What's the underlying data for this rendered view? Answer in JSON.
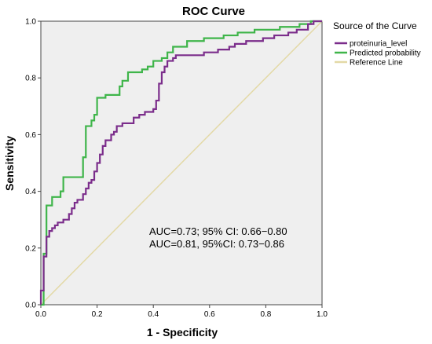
{
  "chart_data": {
    "type": "line",
    "title": "ROC Curve",
    "xlabel": "1 - Specificity",
    "ylabel": "Sensitivity",
    "xlim": [
      0,
      1
    ],
    "ylim": [
      0,
      1
    ],
    "x_ticks": [
      "0.0",
      "0.2",
      "0.4",
      "0.6",
      "0.8",
      "1.0"
    ],
    "y_ticks": [
      "0.0",
      "0.2",
      "0.4",
      "0.6",
      "0.8",
      "1.0"
    ],
    "grid": false,
    "legend": {
      "title": "Source of the Curve",
      "placement": "right"
    },
    "series": [
      {
        "name": "proteinuria_level",
        "color": "#7b2d8b",
        "points": [
          [
            0,
            0
          ],
          [
            0,
            0.05
          ],
          [
            0.01,
            0.05
          ],
          [
            0.01,
            0.17
          ],
          [
            0.02,
            0.17
          ],
          [
            0.02,
            0.24
          ],
          [
            0.03,
            0.24
          ],
          [
            0.03,
            0.26
          ],
          [
            0.04,
            0.26
          ],
          [
            0.04,
            0.27
          ],
          [
            0.05,
            0.27
          ],
          [
            0.05,
            0.28
          ],
          [
            0.06,
            0.28
          ],
          [
            0.06,
            0.29
          ],
          [
            0.07,
            0.29
          ],
          [
            0.08,
            0.29
          ],
          [
            0.08,
            0.3
          ],
          [
            0.09,
            0.3
          ],
          [
            0.1,
            0.3
          ],
          [
            0.1,
            0.32
          ],
          [
            0.11,
            0.32
          ],
          [
            0.11,
            0.34
          ],
          [
            0.12,
            0.34
          ],
          [
            0.12,
            0.36
          ],
          [
            0.13,
            0.36
          ],
          [
            0.13,
            0.37
          ],
          [
            0.15,
            0.37
          ],
          [
            0.15,
            0.39
          ],
          [
            0.16,
            0.39
          ],
          [
            0.16,
            0.41
          ],
          [
            0.17,
            0.41
          ],
          [
            0.17,
            0.43
          ],
          [
            0.18,
            0.43
          ],
          [
            0.18,
            0.44
          ],
          [
            0.19,
            0.44
          ],
          [
            0.19,
            0.47
          ],
          [
            0.2,
            0.47
          ],
          [
            0.2,
            0.5
          ],
          [
            0.21,
            0.5
          ],
          [
            0.21,
            0.53
          ],
          [
            0.22,
            0.53
          ],
          [
            0.22,
            0.56
          ],
          [
            0.23,
            0.56
          ],
          [
            0.23,
            0.58
          ],
          [
            0.25,
            0.58
          ],
          [
            0.25,
            0.6
          ],
          [
            0.26,
            0.6
          ],
          [
            0.26,
            0.61
          ],
          [
            0.27,
            0.61
          ],
          [
            0.27,
            0.63
          ],
          [
            0.29,
            0.63
          ],
          [
            0.29,
            0.64
          ],
          [
            0.33,
            0.64
          ],
          [
            0.33,
            0.66
          ],
          [
            0.35,
            0.66
          ],
          [
            0.35,
            0.67
          ],
          [
            0.37,
            0.67
          ],
          [
            0.37,
            0.68
          ],
          [
            0.4,
            0.68
          ],
          [
            0.4,
            0.69
          ],
          [
            0.41,
            0.69
          ],
          [
            0.41,
            0.72
          ],
          [
            0.42,
            0.72
          ],
          [
            0.42,
            0.78
          ],
          [
            0.43,
            0.78
          ],
          [
            0.43,
            0.82
          ],
          [
            0.44,
            0.82
          ],
          [
            0.44,
            0.84
          ],
          [
            0.45,
            0.84
          ],
          [
            0.45,
            0.86
          ],
          [
            0.47,
            0.86
          ],
          [
            0.47,
            0.87
          ],
          [
            0.48,
            0.87
          ],
          [
            0.48,
            0.88
          ],
          [
            0.58,
            0.88
          ],
          [
            0.58,
            0.89
          ],
          [
            0.63,
            0.89
          ],
          [
            0.63,
            0.9
          ],
          [
            0.67,
            0.9
          ],
          [
            0.67,
            0.91
          ],
          [
            0.69,
            0.91
          ],
          [
            0.69,
            0.92
          ],
          [
            0.73,
            0.92
          ],
          [
            0.73,
            0.93
          ],
          [
            0.79,
            0.93
          ],
          [
            0.79,
            0.94
          ],
          [
            0.83,
            0.94
          ],
          [
            0.83,
            0.95
          ],
          [
            0.88,
            0.95
          ],
          [
            0.88,
            0.96
          ],
          [
            0.91,
            0.96
          ],
          [
            0.91,
            0.97
          ],
          [
            0.95,
            0.97
          ],
          [
            0.95,
            0.99
          ],
          [
            0.97,
            0.99
          ],
          [
            0.97,
            1.0
          ],
          [
            1.0,
            1.0
          ]
        ]
      },
      {
        "name": "Predicted probability",
        "color": "#3fb54a",
        "points": [
          [
            0,
            0
          ],
          [
            0.01,
            0
          ],
          [
            0.01,
            0.18
          ],
          [
            0.02,
            0.18
          ],
          [
            0.02,
            0.35
          ],
          [
            0.04,
            0.35
          ],
          [
            0.04,
            0.38
          ],
          [
            0.07,
            0.38
          ],
          [
            0.07,
            0.4
          ],
          [
            0.08,
            0.4
          ],
          [
            0.08,
            0.45
          ],
          [
            0.15,
            0.45
          ],
          [
            0.15,
            0.52
          ],
          [
            0.16,
            0.52
          ],
          [
            0.16,
            0.63
          ],
          [
            0.18,
            0.63
          ],
          [
            0.18,
            0.65
          ],
          [
            0.19,
            0.65
          ],
          [
            0.19,
            0.67
          ],
          [
            0.2,
            0.67
          ],
          [
            0.2,
            0.73
          ],
          [
            0.23,
            0.73
          ],
          [
            0.23,
            0.74
          ],
          [
            0.28,
            0.74
          ],
          [
            0.28,
            0.77
          ],
          [
            0.29,
            0.77
          ],
          [
            0.29,
            0.79
          ],
          [
            0.31,
            0.79
          ],
          [
            0.31,
            0.82
          ],
          [
            0.36,
            0.82
          ],
          [
            0.36,
            0.83
          ],
          [
            0.38,
            0.83
          ],
          [
            0.38,
            0.84
          ],
          [
            0.4,
            0.84
          ],
          [
            0.4,
            0.86
          ],
          [
            0.43,
            0.86
          ],
          [
            0.43,
            0.87
          ],
          [
            0.45,
            0.87
          ],
          [
            0.45,
            0.89
          ],
          [
            0.47,
            0.89
          ],
          [
            0.47,
            0.91
          ],
          [
            0.52,
            0.91
          ],
          [
            0.52,
            0.93
          ],
          [
            0.58,
            0.93
          ],
          [
            0.58,
            0.94
          ],
          [
            0.65,
            0.94
          ],
          [
            0.65,
            0.95
          ],
          [
            0.7,
            0.95
          ],
          [
            0.7,
            0.96
          ],
          [
            0.76,
            0.96
          ],
          [
            0.76,
            0.97
          ],
          [
            0.85,
            0.97
          ],
          [
            0.85,
            0.98
          ],
          [
            0.92,
            0.98
          ],
          [
            0.92,
            0.99
          ],
          [
            0.96,
            0.99
          ],
          [
            0.96,
            1.0
          ],
          [
            1.0,
            1.0
          ]
        ]
      },
      {
        "name": "Reference Line",
        "color": "#e3d9a6",
        "points": [
          [
            0,
            0
          ],
          [
            1,
            1
          ]
        ]
      }
    ],
    "annotations": [
      "AUC=0.73; 95% CI: 0.66−0.80",
      "AUC=0.81, 95%CI: 0.73−0.86"
    ],
    "background_color": "#efefef"
  }
}
